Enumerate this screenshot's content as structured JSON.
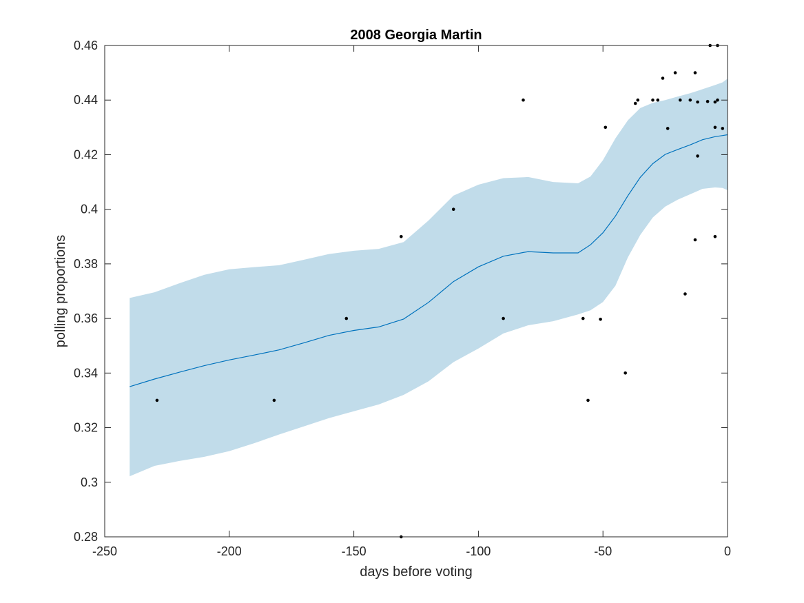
{
  "chart_data": {
    "type": "line",
    "title": "2008 Georgia Martin",
    "xlabel": "days before voting",
    "ylabel": "polling proportions",
    "xlim": [
      -250,
      0
    ],
    "ylim": [
      0.28,
      0.46
    ],
    "xticks": [
      -250,
      -200,
      -150,
      -100,
      -50,
      0
    ],
    "yticks": [
      0.28,
      0.3,
      0.32,
      0.34,
      0.36,
      0.38,
      0.4,
      0.42,
      0.44,
      0.46
    ],
    "xtick_labels": [
      "-250",
      "-200",
      "-150",
      "-100",
      "-50",
      "0"
    ],
    "ytick_labels": [
      "0.28",
      "0.3",
      "0.32",
      "0.34",
      "0.36",
      "0.38",
      "0.4",
      "0.42",
      "0.44",
      "0.46"
    ],
    "grid": false,
    "colors": {
      "line": "#0072BD",
      "band": "#C1DCEA",
      "points": "#000000",
      "axes": "#262626"
    },
    "series": [
      {
        "kind": "mean-line",
        "x": [
          -240,
          -230,
          -220,
          -210,
          -200,
          -190,
          -180,
          -170,
          -160,
          -150,
          -140,
          -130,
          -120,
          -110,
          -100,
          -90,
          -80,
          -70,
          -60,
          -55,
          -50,
          -45,
          -40,
          -35,
          -30,
          -25,
          -20,
          -15,
          -10,
          -5,
          -2,
          0
        ],
        "y": [
          0.335,
          0.3378,
          0.3403,
          0.3427,
          0.3448,
          0.3466,
          0.3485,
          0.3511,
          0.3538,
          0.3556,
          0.3569,
          0.3598,
          0.3659,
          0.3735,
          0.3789,
          0.3828,
          0.3845,
          0.384,
          0.384,
          0.387,
          0.3914,
          0.3975,
          0.405,
          0.4117,
          0.4167,
          0.4201,
          0.4219,
          0.4236,
          0.4255,
          0.4266,
          0.427,
          0.4273
        ]
      },
      {
        "kind": "confidence-band",
        "x": [
          -240,
          -230,
          -220,
          -210,
          -200,
          -190,
          -180,
          -170,
          -160,
          -150,
          -140,
          -130,
          -120,
          -110,
          -100,
          -90,
          -80,
          -70,
          -60,
          -55,
          -50,
          -45,
          -40,
          -35,
          -30,
          -25,
          -20,
          -15,
          -10,
          -5,
          -2,
          0
        ],
        "upper": [
          0.3675,
          0.3696,
          0.3729,
          0.376,
          0.378,
          0.3788,
          0.3795,
          0.3815,
          0.3836,
          0.3848,
          0.3855,
          0.388,
          0.3959,
          0.405,
          0.409,
          0.4114,
          0.4118,
          0.41,
          0.4095,
          0.412,
          0.418,
          0.426,
          0.4326,
          0.4371,
          0.439,
          0.44,
          0.4413,
          0.4425,
          0.444,
          0.4455,
          0.4465,
          0.4478
        ],
        "lower": [
          0.3022,
          0.306,
          0.3078,
          0.3093,
          0.3114,
          0.3143,
          0.3175,
          0.3205,
          0.3235,
          0.326,
          0.3285,
          0.332,
          0.337,
          0.344,
          0.349,
          0.3545,
          0.3575,
          0.359,
          0.3615,
          0.363,
          0.366,
          0.372,
          0.3824,
          0.3906,
          0.397,
          0.401,
          0.4035,
          0.4055,
          0.4075,
          0.408,
          0.4078,
          0.407
        ]
      },
      {
        "kind": "poll-points",
        "x": [
          -229,
          -182,
          -153,
          -131,
          -131,
          -110,
          -90,
          -82,
          -58,
          -56,
          -51,
          -49,
          -41,
          -37,
          -36,
          -30,
          -28,
          -26,
          -24,
          -21,
          -19,
          -17,
          -15,
          -13,
          -13,
          -12,
          -12,
          -8,
          -7,
          -5,
          -5,
          -5,
          -4,
          -4,
          -2
        ],
        "y": [
          0.33,
          0.33,
          0.36,
          0.39,
          0.28,
          0.4,
          0.36,
          0.44,
          0.36,
          0.33,
          0.3597,
          0.43,
          0.34,
          0.4388,
          0.44,
          0.44,
          0.44,
          0.448,
          0.4296,
          0.45,
          0.44,
          0.369,
          0.44,
          0.45,
          0.3888,
          0.4393,
          0.4195,
          0.4395,
          0.46,
          0.4393,
          0.43,
          0.39,
          0.46,
          0.44,
          0.4296
        ]
      }
    ]
  }
}
